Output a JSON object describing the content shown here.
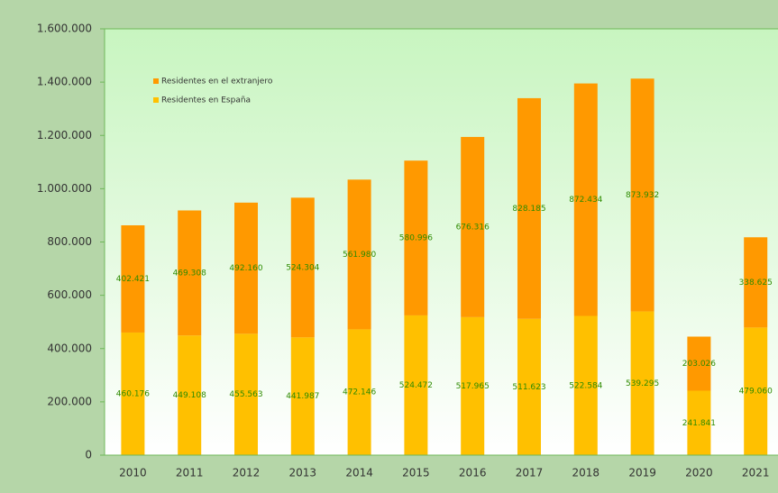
{
  "chart_data": {
    "type": "bar",
    "stacked": true,
    "categories": [
      "2010",
      "2011",
      "2012",
      "2013",
      "2014",
      "2015",
      "2016",
      "2017",
      "2018",
      "2019",
      "2020",
      "2021"
    ],
    "series": [
      {
        "name": "Residentes en España",
        "color": "#ffc000",
        "values": [
          460176,
          449108,
          455563,
          441987,
          472146,
          524472,
          517965,
          511623,
          522584,
          539295,
          241841,
          479060
        ],
        "value_labels": [
          "460.176",
          "449.108",
          "455.563",
          "441.987",
          "472.146",
          "524.472",
          "517.965",
          "511.623",
          "522.584",
          "539.295",
          "241.841",
          "479.060"
        ]
      },
      {
        "name": "Residentes en el extranjero",
        "color": "#ff9900",
        "values": [
          402421,
          469308,
          492160,
          524304,
          561980,
          580996,
          676316,
          828185,
          872434,
          873932,
          203026,
          338625
        ],
        "value_labels": [
          "402.421",
          "469.308",
          "492.160",
          "524.304",
          "561.980",
          "580.996",
          "676.316",
          "828.185",
          "872.434",
          "873.932",
          "203.026",
          "338.625"
        ]
      }
    ],
    "ylim": [
      0,
      1600000
    ],
    "yticks": [
      0,
      {
        "value": 200000,
        "label": "200.000"
      },
      {
        "value": 400000,
        "label": "400.000"
      },
      {
        "value": 600000,
        "label": "600.000"
      },
      {
        "value": 800000,
        "label": "800.000"
      },
      {
        "value": 1000000,
        "label": "1.000.000"
      },
      {
        "value": 1200000,
        "label": "1.200.000"
      },
      {
        "value": 1400000,
        "label": "1.400.000"
      },
      {
        "value": 1600000,
        "label": "1.600.000"
      }
    ],
    "legend": "upper left"
  }
}
